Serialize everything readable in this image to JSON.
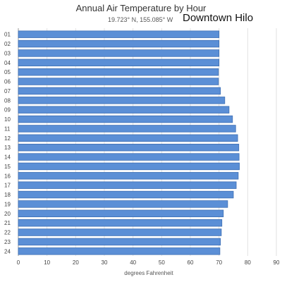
{
  "chart_data": {
    "type": "bar",
    "orientation": "horizontal",
    "title": "Annual Air Temperature by Hour",
    "subtitle": "19.723° N, 155.085° W",
    "location_label": "Downtown Hilo",
    "xlabel": "degrees Fahrenheit",
    "ylabel": "",
    "xlim": [
      0,
      90
    ],
    "x_ticks": [
      0,
      10,
      20,
      30,
      40,
      50,
      60,
      70,
      80,
      90
    ],
    "grid": "vertical",
    "bar_color": "#5b8fd6",
    "bar_edge_color": "#3e6fb3",
    "categories": [
      "01",
      "02",
      "03",
      "04",
      "05",
      "06",
      "07",
      "08",
      "09",
      "10",
      "11",
      "12",
      "13",
      "14",
      "15",
      "16",
      "17",
      "18",
      "19",
      "20",
      "21",
      "22",
      "23",
      "24"
    ],
    "values": [
      70.0,
      70.0,
      70.0,
      70.0,
      69.8,
      69.8,
      70.5,
      72.0,
      73.5,
      74.7,
      75.8,
      76.5,
      76.9,
      77.0,
      77.1,
      76.7,
      76.0,
      75.0,
      73.0,
      71.5,
      71.0,
      70.8,
      70.5,
      70.3
    ]
  }
}
